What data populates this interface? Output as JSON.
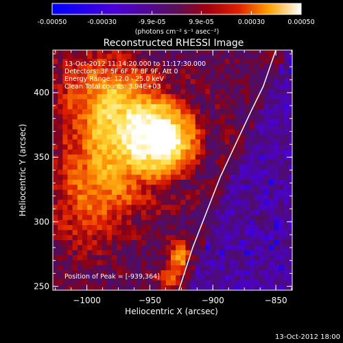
{
  "chart_data": {
    "type": "heatmap",
    "title": "Reconstructed RHESSI Image",
    "xlabel": "Heliocentric X (arcsec)",
    "ylabel": "Heliocentric Y (arcsec)",
    "xlim": [
      -1027,
      -837
    ],
    "ylim": [
      247,
      433
    ],
    "xticks": [
      -1000,
      -950,
      -900,
      -850
    ],
    "yticks": [
      250,
      300,
      350,
      400
    ],
    "colorbar": {
      "unit": "(photons cm⁻² s⁻¹ asec⁻²)",
      "ticks": [
        -0.0005,
        -0.0003,
        -9.9e-05,
        9.9e-05,
        0.0003,
        0.0005
      ],
      "tick_labels": [
        "-0.00050",
        "-0.00030",
        "-9.9e-05",
        "9.9e-05",
        "0.00030",
        "0.00050"
      ],
      "range": [
        -0.0005,
        0.0005
      ]
    },
    "info_lines": [
      "13-Oct-2012 11:14:20.000 to 11:17:30.000",
      "Detectors: 3F 5F 6F 7F 8F 9F, Att 0",
      "Energy Range: 12.0 - 25.0 keV",
      "Clean    Total counts: 3.94E+03"
    ],
    "peak_label": "Position of Peak = [-939,364]",
    "peak": [
      -939,
      364
    ],
    "footer": "13-Oct-2012 18:00",
    "limb_curve": [
      [
        -927,
        247
      ],
      [
        -916,
        280
      ],
      [
        -904,
        310
      ],
      [
        -894,
        335
      ],
      [
        -882,
        360
      ],
      [
        -870,
        385
      ],
      [
        -860,
        405
      ],
      [
        -850,
        433
      ]
    ],
    "sources": [
      {
        "x": -937,
        "y": 363,
        "sx": 14,
        "sy": 14,
        "amp": 0.0005
      },
      {
        "x": -965,
        "y": 380,
        "sx": 25,
        "sy": 20,
        "amp": 0.00028
      },
      {
        "x": -975,
        "y": 345,
        "sx": 28,
        "sy": 25,
        "amp": 0.00024
      },
      {
        "x": -990,
        "y": 405,
        "sx": 25,
        "sy": 20,
        "amp": 0.00018
      },
      {
        "x": -1000,
        "y": 310,
        "sx": 20,
        "sy": 25,
        "amp": 0.00014
      },
      {
        "x": -926,
        "y": 272,
        "sx": 6,
        "sy": 8,
        "amp": 0.0003
      },
      {
        "x": -935,
        "y": 255,
        "sx": 6,
        "sy": 6,
        "amp": 0.00018
      }
    ],
    "grid": false
  }
}
